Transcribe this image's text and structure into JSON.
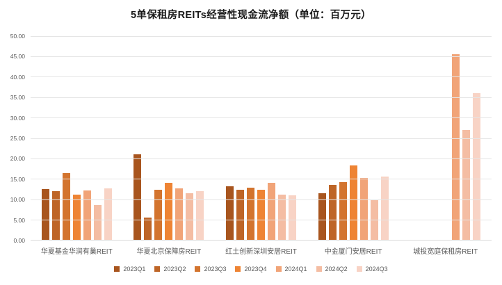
{
  "title": "5单保租房REITs经营性现金流净额（单位：百万元）",
  "chart_data": {
    "type": "bar",
    "title": "5单保租房REITs经营性现金流净额（单位：百万元）",
    "unit": "百万元",
    "categories": [
      "华夏基金华润有巢REIT",
      "华夏北京保障房REIT",
      "红土创新深圳安居REIT",
      "中金厦门安居REIT",
      "城投宽庭保租房REIT"
    ],
    "series": [
      {
        "name": "2023Q1",
        "color": "#A8551E",
        "values": [
          12.6,
          21.1,
          13.2,
          11.5,
          0
        ]
      },
      {
        "name": "2023Q2",
        "color": "#BE6527",
        "values": [
          12.1,
          5.6,
          12.5,
          13.6,
          0
        ]
      },
      {
        "name": "2023Q3",
        "color": "#D3742E",
        "values": [
          16.5,
          12.5,
          12.9,
          14.3,
          0
        ]
      },
      {
        "name": "2023Q4",
        "color": "#EE8434",
        "values": [
          11.3,
          14.2,
          12.4,
          18.4,
          0
        ]
      },
      {
        "name": "2024Q1",
        "color": "#F1A478",
        "values": [
          12.2,
          12.8,
          14.1,
          15.3,
          45.6
        ]
      },
      {
        "name": "2024Q2",
        "color": "#F4BDA3",
        "values": [
          8.6,
          11.5,
          11.2,
          9.8,
          27.1
        ]
      },
      {
        "name": "2024Q3",
        "color": "#F8D3C5",
        "values": [
          12.8,
          12.1,
          11.1,
          15.7,
          36.1
        ]
      }
    ],
    "ylim": [
      0,
      50
    ],
    "y_tick_step": 5,
    "y_tick_labels": [
      "0.00",
      "5.00",
      "10.00",
      "15.00",
      "20.00",
      "25.00",
      "30.00",
      "35.00",
      "40.00",
      "45.00",
      "50.00"
    ],
    "grid": true,
    "legend_position": "bottom"
  },
  "colors": {
    "background": "#ffffff",
    "title_text": "#1a1a1a",
    "axis_text": "#595959",
    "gridline": "#e5e5e5",
    "axis_line": "#d9d9d9"
  }
}
